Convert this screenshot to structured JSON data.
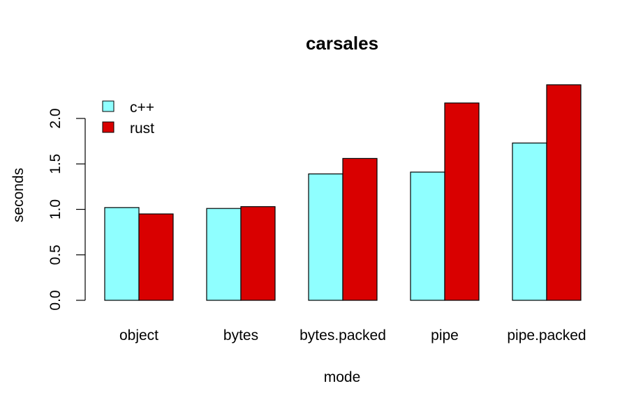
{
  "chart_data": {
    "type": "bar",
    "title": "carsales",
    "xlabel": "mode",
    "ylabel": "seconds",
    "categories": [
      "object",
      "bytes",
      "bytes.packed",
      "pipe",
      "pipe.packed"
    ],
    "series": [
      {
        "name": "c++",
        "color": "#8fffff",
        "values": [
          1.02,
          1.01,
          1.39,
          1.41,
          1.73
        ]
      },
      {
        "name": "rust",
        "color": "#d90000",
        "values": [
          0.95,
          1.03,
          1.56,
          2.17,
          2.37
        ]
      }
    ],
    "ylim": [
      0,
      2.4
    ],
    "yticks": [
      "0.0",
      "0.5",
      "1.0",
      "1.5",
      "2.0"
    ],
    "ytick_values": [
      0,
      0.5,
      1.0,
      1.5,
      2.0
    ],
    "grid": false,
    "legend_position": "top-left"
  },
  "legend": {
    "items": [
      "c++",
      "rust"
    ]
  }
}
